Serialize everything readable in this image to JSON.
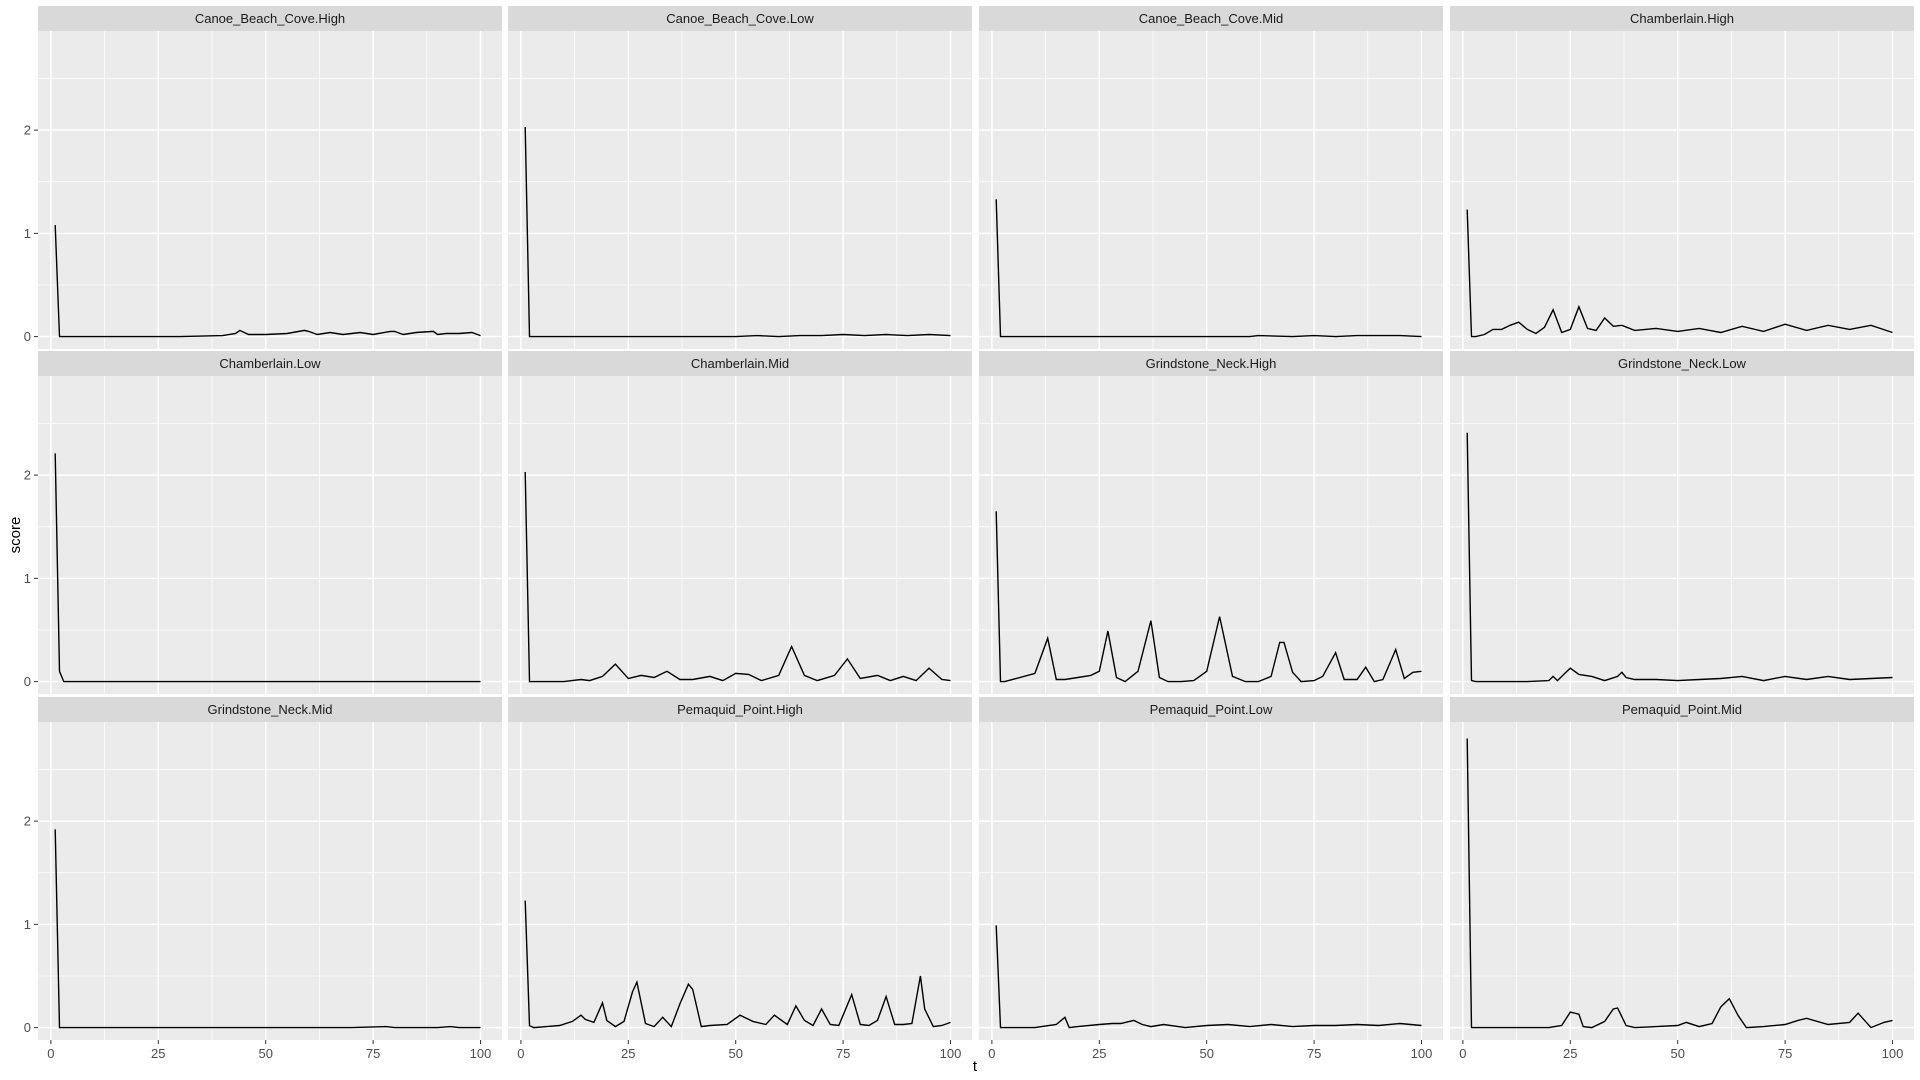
{
  "chart_data": {
    "type": "line",
    "xlabel": "t",
    "ylabel": "score",
    "xlim": [
      -3,
      105
    ],
    "ylim": [
      -0.12,
      2.96
    ],
    "x_ticks": [
      0,
      25,
      50,
      75,
      100
    ],
    "y_ticks": [
      0,
      1,
      2
    ],
    "grid": true,
    "line_color": "#000000",
    "colors": {
      "panel_bg": "#ebebeb",
      "strip_bg": "#d9d9d9",
      "grid": "#ffffff"
    },
    "panels": [
      {
        "name": "Canoe_Beach_Cove.High",
        "x": [
          1,
          2,
          3,
          10,
          20,
          30,
          40,
          43,
          44,
          46,
          50,
          55,
          59,
          60,
          62,
          65,
          68,
          72,
          75,
          79,
          80,
          82,
          85,
          89,
          90,
          92,
          95,
          98,
          100
        ],
        "y": [
          1.08,
          0,
          0,
          0,
          0,
          0,
          0.01,
          0.03,
          0.06,
          0.02,
          0.02,
          0.03,
          0.06,
          0.05,
          0.02,
          0.04,
          0.02,
          0.04,
          0.02,
          0.05,
          0.05,
          0.02,
          0.04,
          0.05,
          0.02,
          0.03,
          0.03,
          0.04,
          0.01
        ]
      },
      {
        "name": "Canoe_Beach_Cove.Low",
        "x": [
          1,
          2,
          3,
          10,
          20,
          30,
          40,
          50,
          55,
          60,
          65,
          70,
          75,
          80,
          85,
          90,
          95,
          100
        ],
        "y": [
          2.03,
          0,
          0,
          0,
          0,
          0,
          0,
          0,
          0.01,
          0,
          0.01,
          0.01,
          0.02,
          0.01,
          0.02,
          0.01,
          0.02,
          0.01
        ]
      },
      {
        "name": "Canoe_Beach_Cove.Mid",
        "x": [
          1,
          2,
          3,
          10,
          20,
          30,
          40,
          50,
          60,
          62,
          70,
          75,
          80,
          85,
          90,
          95,
          100
        ],
        "y": [
          1.33,
          0,
          0,
          0,
          0,
          0,
          0,
          0,
          0,
          0.01,
          0,
          0.01,
          0,
          0.01,
          0.01,
          0.01,
          0
        ]
      },
      {
        "name": "Chamberlain.High",
        "x": [
          1,
          2,
          3,
          5,
          7,
          9,
          11,
          13,
          15,
          17,
          19,
          21,
          23,
          25,
          27,
          29,
          31,
          33,
          35,
          37,
          40,
          45,
          50,
          55,
          60,
          65,
          70,
          75,
          80,
          85,
          90,
          95,
          100
        ],
        "y": [
          1.23,
          0,
          0,
          0.02,
          0.07,
          0.07,
          0.11,
          0.14,
          0.07,
          0.03,
          0.09,
          0.26,
          0.04,
          0.07,
          0.29,
          0.08,
          0.06,
          0.18,
          0.1,
          0.11,
          0.06,
          0.08,
          0.05,
          0.08,
          0.04,
          0.1,
          0.05,
          0.12,
          0.06,
          0.11,
          0.07,
          0.11,
          0.04
        ]
      },
      {
        "name": "Chamberlain.Low",
        "x": [
          1,
          2,
          3,
          10,
          20,
          30,
          40,
          50,
          60,
          70,
          80,
          90,
          100
        ],
        "y": [
          2.21,
          0.1,
          0,
          0,
          0,
          0,
          0,
          0,
          0,
          0,
          0,
          0,
          0
        ]
      },
      {
        "name": "Chamberlain.Mid",
        "x": [
          1,
          2,
          3,
          10,
          14,
          16,
          19,
          22,
          25,
          28,
          31,
          34,
          37,
          40,
          44,
          47,
          50,
          53,
          56,
          60,
          63,
          66,
          69,
          73,
          76,
          79,
          83,
          86,
          89,
          92,
          95,
          98,
          100
        ],
        "y": [
          2.03,
          0,
          0,
          0,
          0.02,
          0.01,
          0.05,
          0.17,
          0.03,
          0.06,
          0.04,
          0.1,
          0.02,
          0.02,
          0.05,
          0.01,
          0.08,
          0.07,
          0.01,
          0.06,
          0.34,
          0.06,
          0.01,
          0.06,
          0.22,
          0.03,
          0.06,
          0.01,
          0.05,
          0.01,
          0.13,
          0.02,
          0.01
        ]
      },
      {
        "name": "Grindstone_Neck.High",
        "x": [
          1,
          2,
          3,
          10,
          13,
          15,
          17,
          20,
          23,
          25,
          27,
          29,
          31,
          34,
          37,
          39,
          41,
          44,
          47,
          50,
          53,
          56,
          59,
          62,
          65,
          67,
          68,
          70,
          72,
          75,
          77,
          80,
          82,
          85,
          87,
          89,
          91,
          94,
          96,
          98,
          100
        ],
        "y": [
          1.65,
          0,
          0,
          0.08,
          0.42,
          0.02,
          0.02,
          0.04,
          0.06,
          0.1,
          0.49,
          0.04,
          0,
          0.1,
          0.59,
          0.04,
          0,
          0,
          0.01,
          0.1,
          0.63,
          0.05,
          0,
          0,
          0.05,
          0.38,
          0.38,
          0.09,
          0,
          0.01,
          0.05,
          0.28,
          0.02,
          0.02,
          0.14,
          0,
          0.02,
          0.31,
          0.03,
          0.09,
          0.1
        ]
      },
      {
        "name": "Grindstone_Neck.Low",
        "x": [
          1,
          2,
          3,
          10,
          15,
          20,
          21,
          22,
          24,
          25,
          27,
          30,
          33,
          36,
          37,
          38,
          40,
          45,
          50,
          55,
          60,
          65,
          70,
          75,
          80,
          85,
          90,
          95,
          100
        ],
        "y": [
          2.41,
          0.01,
          0,
          0,
          0,
          0.01,
          0.05,
          0.01,
          0.09,
          0.13,
          0.07,
          0.05,
          0.01,
          0.05,
          0.09,
          0.04,
          0.02,
          0.02,
          0.01,
          0.02,
          0.03,
          0.05,
          0.01,
          0.05,
          0.02,
          0.05,
          0.02,
          0.03,
          0.04
        ]
      },
      {
        "name": "Grindstone_Neck.Mid",
        "x": [
          1,
          2,
          3,
          10,
          20,
          30,
          40,
          50,
          60,
          70,
          78,
          80,
          85,
          90,
          93,
          95,
          100
        ],
        "y": [
          1.92,
          0,
          0,
          0,
          0,
          0,
          0,
          0,
          0,
          0,
          0.01,
          0,
          0,
          0,
          0.01,
          0,
          0
        ]
      },
      {
        "name": "Pemaquid_Point.High",
        "x": [
          1,
          2,
          3,
          6,
          9,
          12,
          14,
          15,
          17,
          19,
          20,
          22,
          24,
          26,
          27,
          29,
          31,
          33,
          35,
          37,
          39,
          40,
          42,
          44,
          48,
          51,
          54,
          57,
          59,
          62,
          64,
          66,
          68,
          70,
          72,
          74,
          77,
          79,
          81,
          83,
          85,
          87,
          89,
          91,
          93,
          94,
          96,
          98,
          100
        ],
        "y": [
          1.23,
          0.02,
          0,
          0.01,
          0.02,
          0.06,
          0.12,
          0.08,
          0.05,
          0.24,
          0.07,
          0.01,
          0.06,
          0.35,
          0.44,
          0.04,
          0.01,
          0.1,
          0.01,
          0.23,
          0.42,
          0.37,
          0.01,
          0.02,
          0.03,
          0.12,
          0.06,
          0.03,
          0.12,
          0.03,
          0.21,
          0.07,
          0.02,
          0.18,
          0.03,
          0.02,
          0.32,
          0.03,
          0.02,
          0.07,
          0.3,
          0.03,
          0.03,
          0.04,
          0.5,
          0.18,
          0.01,
          0.02,
          0.05
        ]
      },
      {
        "name": "Pemaquid_Point.Low",
        "x": [
          1,
          2,
          3,
          10,
          15,
          17,
          18,
          20,
          25,
          28,
          30,
          33,
          35,
          37,
          40,
          45,
          50,
          55,
          60,
          65,
          70,
          75,
          80,
          85,
          90,
          95,
          100
        ],
        "y": [
          0.99,
          0,
          0,
          0,
          0.03,
          0.1,
          0,
          0.01,
          0.03,
          0.04,
          0.04,
          0.07,
          0.03,
          0.01,
          0.03,
          0,
          0.02,
          0.03,
          0.01,
          0.03,
          0.01,
          0.02,
          0.02,
          0.03,
          0.02,
          0.04,
          0.02
        ]
      },
      {
        "name": "Pemaquid_Point.Mid",
        "x": [
          1,
          2,
          3,
          10,
          20,
          23,
          25,
          27,
          28,
          30,
          33,
          35,
          36,
          38,
          40,
          45,
          50,
          52,
          55,
          58,
          60,
          62,
          64,
          66,
          70,
          75,
          78,
          80,
          85,
          90,
          92,
          95,
          98,
          100
        ],
        "y": [
          2.8,
          0,
          0,
          0,
          0,
          0.02,
          0.15,
          0.13,
          0.01,
          0,
          0.06,
          0.18,
          0.19,
          0.02,
          0,
          0.01,
          0.02,
          0.05,
          0.01,
          0.04,
          0.2,
          0.28,
          0.12,
          0,
          0.01,
          0.03,
          0.07,
          0.09,
          0.03,
          0.05,
          0.14,
          0,
          0.05,
          0.07
        ]
      }
    ]
  }
}
